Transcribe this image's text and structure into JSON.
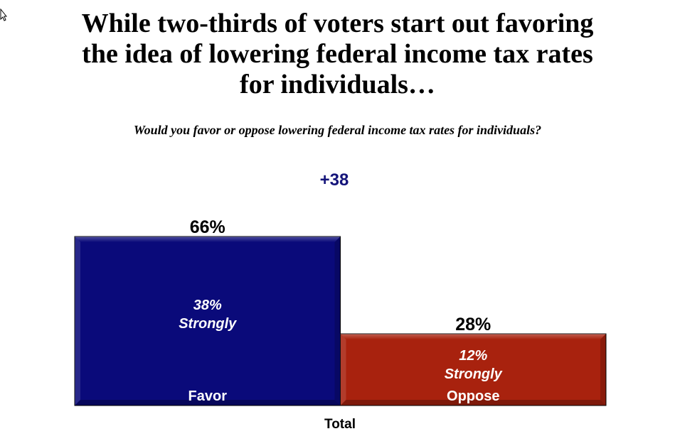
{
  "title_lines": [
    "While two-thirds of voters start out favoring",
    "the idea of lowering federal income tax rates",
    "for individuals…"
  ],
  "subtitle": "Would you favor or oppose lowering federal income tax rates for individuals?",
  "difference_label": "+38",
  "colors": {
    "favor": "#0a0a7a",
    "oppose": "#a8220e",
    "difference": "#14147a"
  },
  "chart_data": {
    "type": "bar",
    "xlabel": "Total",
    "categories": [
      "Favor",
      "Oppose"
    ],
    "values": [
      66,
      28
    ],
    "value_labels": [
      "66%",
      "28%"
    ],
    "strongly_values": [
      38,
      12
    ],
    "strongly_labels": [
      [
        "38%",
        "Strongly"
      ],
      [
        "12%",
        "Strongly"
      ]
    ]
  }
}
